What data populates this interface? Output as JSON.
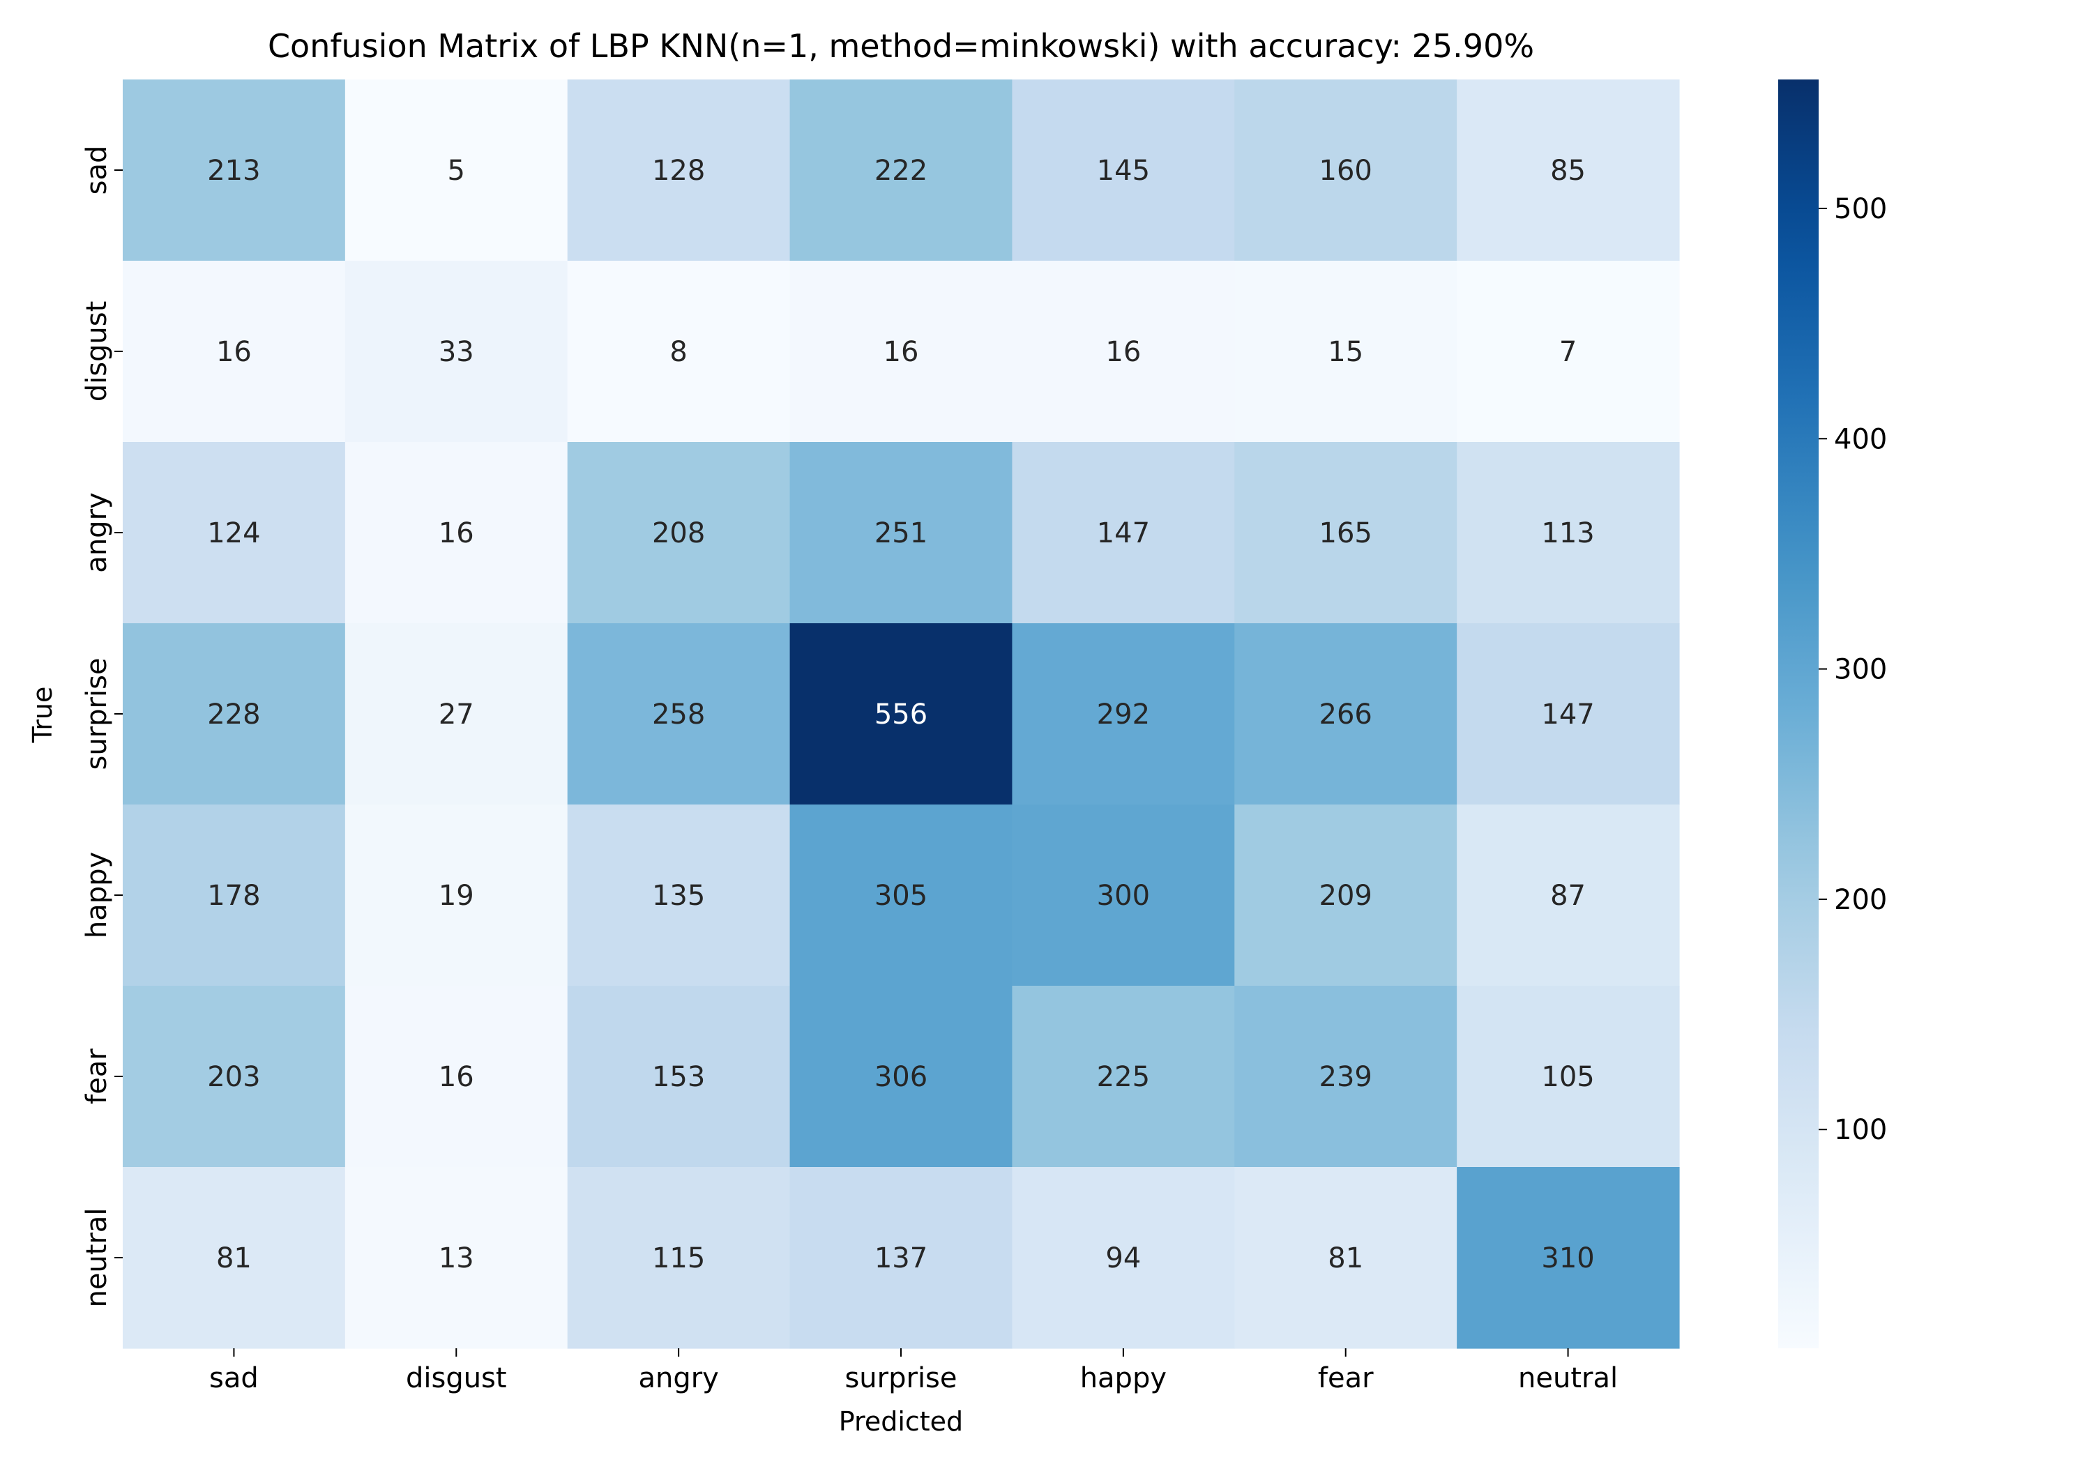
{
  "chart_data": {
    "type": "heatmap",
    "title": "Confusion Matrix of LBP KNN(n=1, method=minkowski) with accuracy: 25.90%",
    "xlabel": "Predicted",
    "ylabel": "True",
    "x_categories": [
      "sad",
      "disgust",
      "angry",
      "surprise",
      "happy",
      "fear",
      "neutral"
    ],
    "y_categories": [
      "sad",
      "disgust",
      "angry",
      "surprise",
      "happy",
      "fear",
      "neutral"
    ],
    "values": [
      [
        213,
        5,
        128,
        222,
        145,
        160,
        85
      ],
      [
        16,
        33,
        8,
        16,
        16,
        15,
        7
      ],
      [
        124,
        16,
        208,
        251,
        147,
        165,
        113
      ],
      [
        228,
        27,
        258,
        556,
        292,
        266,
        147
      ],
      [
        178,
        19,
        135,
        305,
        300,
        209,
        87
      ],
      [
        203,
        16,
        153,
        306,
        225,
        239,
        105
      ],
      [
        81,
        13,
        115,
        137,
        94,
        81,
        310
      ]
    ],
    "colorbar": {
      "colormap": "Blues",
      "min": 5,
      "max": 556,
      "ticks": [
        100,
        200,
        300,
        400,
        500
      ]
    },
    "colors": {
      "dark_text": "#262626",
      "light_text": "#ffffff"
    }
  }
}
